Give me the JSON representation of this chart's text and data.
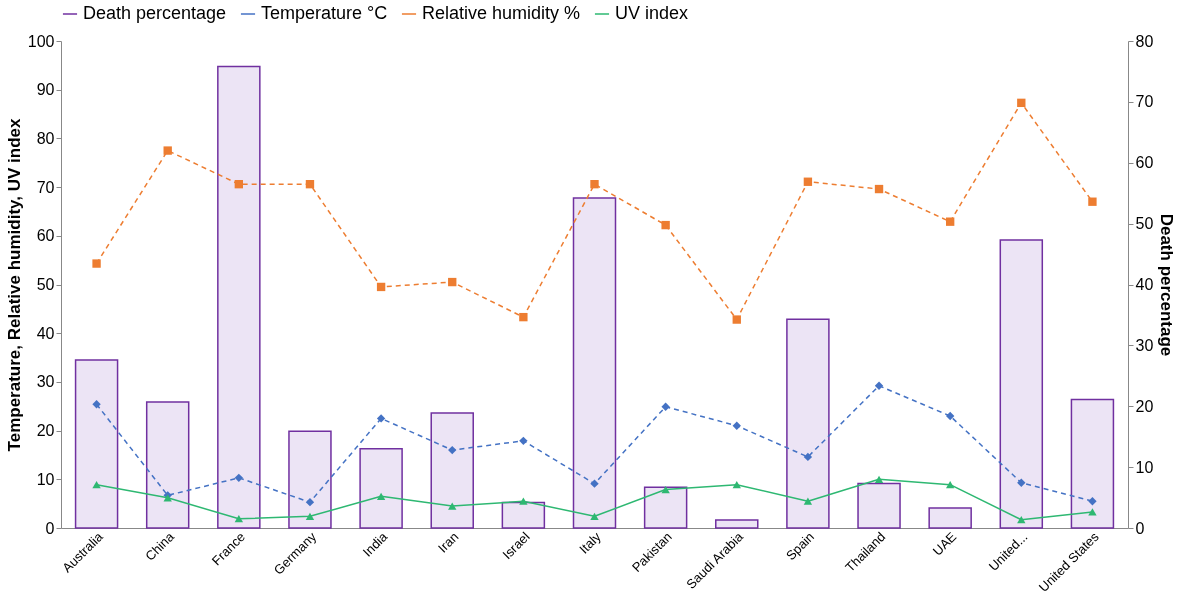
{
  "chart_data": {
    "type": "bar",
    "categories": [
      "Australia",
      "China",
      "France",
      "Germany",
      "India",
      "Iran",
      "Israel",
      "Italy",
      "Pakistan",
      "Saudi Arabia",
      "Spain",
      "Thailand",
      "UAE",
      "United...",
      "United States"
    ],
    "ylabel": "Temperature, Relative humidity,  UV index",
    "y2label": "Death percentage",
    "ylim": [
      0,
      100
    ],
    "yticks": [
      0,
      10,
      20,
      30,
      40,
      50,
      60,
      70,
      80,
      90,
      100
    ],
    "y2lim": [
      0,
      80
    ],
    "y2ticks": [
      0,
      10,
      20,
      30,
      40,
      50,
      60,
      70,
      80
    ],
    "grid": false,
    "legend": "top",
    "series": [
      {
        "name": "Death percentage",
        "axis": "y2",
        "color": "#7030a0",
        "values": [
          27.6,
          20.7,
          75.8,
          15.9,
          13.0,
          18.9,
          4.2,
          54.2,
          6.7,
          1.3,
          34.3,
          7.3,
          3.3,
          47.3,
          21.1
        ]
      },
      {
        "name": "Temperature °C",
        "type": "line",
        "color": "#4472c4",
        "marker": "diamond",
        "line_style": "dashed",
        "values": [
          25.4,
          6.7,
          10.3,
          5.3,
          22.5,
          16.0,
          17.9,
          9.1,
          24.9,
          21.0,
          14.6,
          29.2,
          23.0,
          9.3,
          5.5
        ]
      },
      {
        "name": "Relative humidity %",
        "type": "line",
        "color": "#ed7d31",
        "marker": "square",
        "line_style": "dashed",
        "values": [
          54.3,
          77.5,
          70.6,
          70.6,
          49.5,
          50.5,
          43.3,
          70.6,
          62.2,
          42.8,
          71.1,
          69.6,
          62.9,
          87.3,
          67.0
        ]
      },
      {
        "name": "UV index",
        "type": "line",
        "color": "#2eb872",
        "marker": "triangle",
        "line_style": "solid",
        "values": [
          8.9,
          6.2,
          1.9,
          2.4,
          6.5,
          4.5,
          5.5,
          2.4,
          7.9,
          8.9,
          5.5,
          10.0,
          8.9,
          1.7,
          3.3
        ]
      }
    ]
  }
}
